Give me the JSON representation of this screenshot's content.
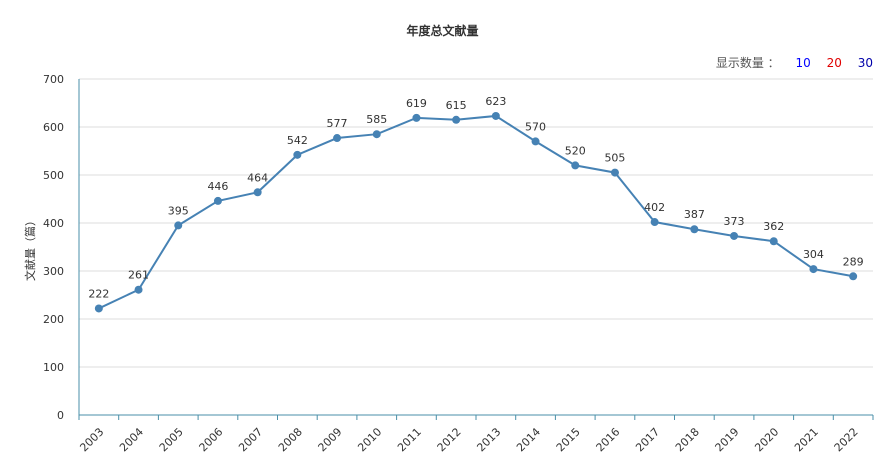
{
  "chart_data": {
    "type": "line",
    "title": "年度总文献量",
    "ylabel": "文献量（篇）",
    "xlabel": "",
    "ylim": [
      0,
      700
    ],
    "yticks": [
      0,
      100,
      200,
      300,
      400,
      500,
      600,
      700
    ],
    "categories": [
      "2003",
      "2004",
      "2005",
      "2006",
      "2007",
      "2008",
      "2009",
      "2010",
      "2011",
      "2012",
      "2013",
      "2014",
      "2015",
      "2016",
      "2017",
      "2018",
      "2019",
      "2020",
      "2021",
      "2022"
    ],
    "values": [
      222,
      261,
      395,
      446,
      464,
      542,
      577,
      585,
      619,
      615,
      623,
      570,
      520,
      505,
      402,
      387,
      373,
      362,
      304,
      289
    ],
    "line_color": "#4682b4",
    "grid": true
  },
  "controls": {
    "display_count_label": "显示数量 ：",
    "options": [
      {
        "label": "10",
        "color": "#0000ff"
      },
      {
        "label": "20",
        "color": "#e00000"
      },
      {
        "label": "30",
        "color": "#0000aa"
      }
    ]
  }
}
